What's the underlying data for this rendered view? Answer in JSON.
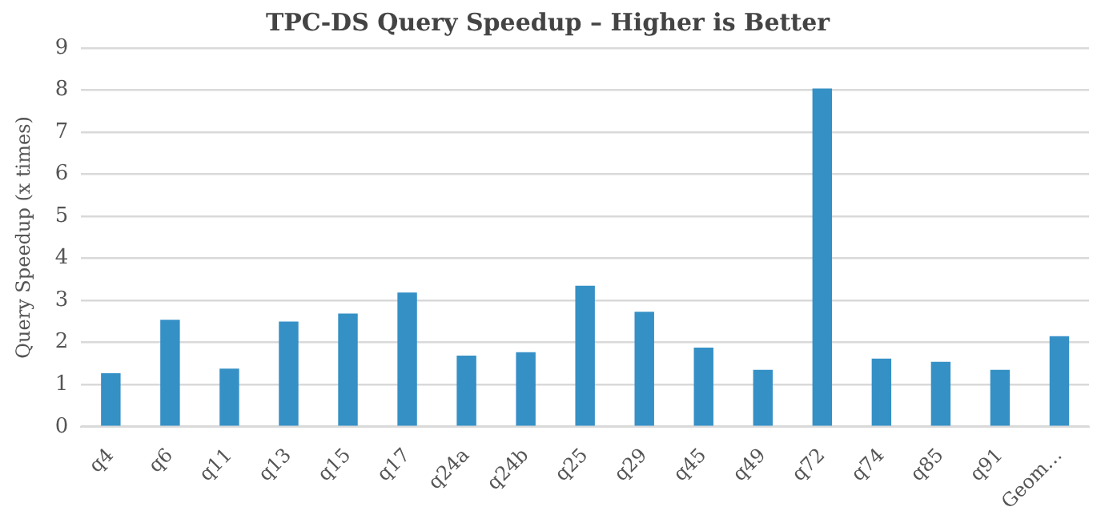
{
  "chart_data": {
    "type": "bar",
    "title": "TPC-DS Query Speedup – Higher is Better",
    "ylabel": "Query Speedup (x times)",
    "categories": [
      "q4",
      "q6",
      "q11",
      "q13",
      "q15",
      "q17",
      "q24a",
      "q24b",
      "q25",
      "q29",
      "q45",
      "q49",
      "q72",
      "q74",
      "q85",
      "q91",
      "Geom…"
    ],
    "values": [
      1.27,
      2.54,
      1.38,
      2.5,
      2.69,
      3.19,
      1.69,
      1.77,
      3.35,
      2.73,
      1.88,
      1.35,
      8.04,
      1.62,
      1.54,
      1.35,
      2.15
    ],
    "color": "#3590c6",
    "ylim": [
      0,
      9
    ],
    "yticks": [
      0,
      1,
      2,
      3,
      4,
      5,
      6,
      7,
      8,
      9
    ],
    "grid": "y",
    "legend": false
  }
}
